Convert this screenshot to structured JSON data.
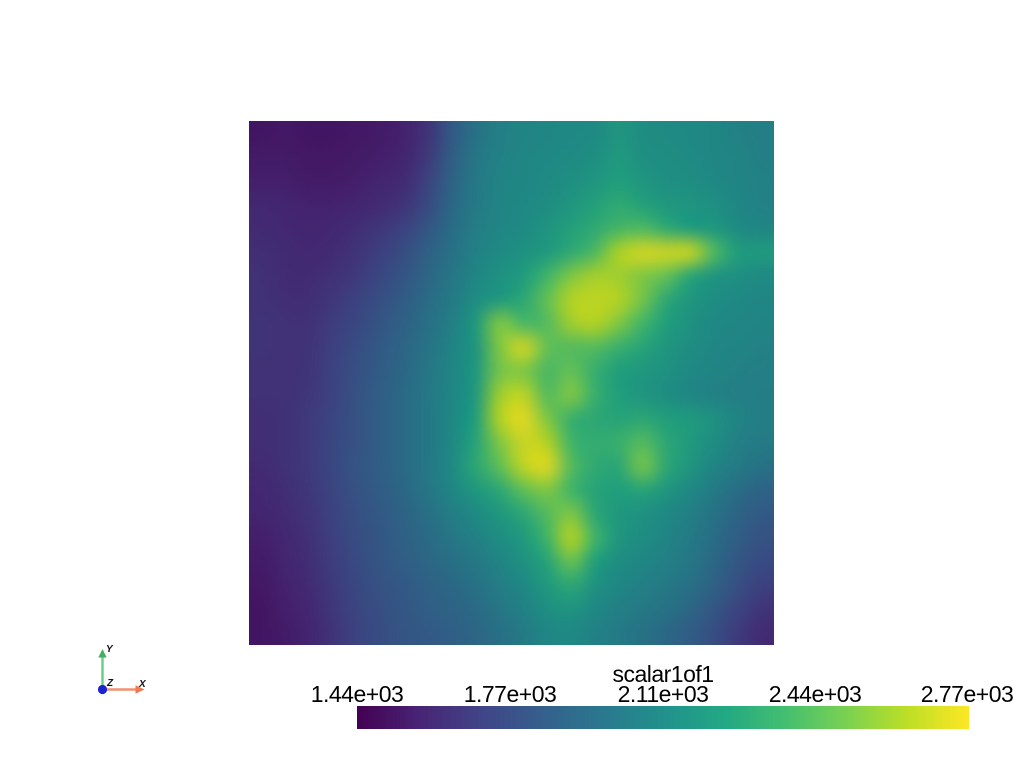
{
  "page": {
    "background": "#ffffff"
  },
  "chart_data": {
    "type": "heatmap",
    "title": "scalar1of1",
    "colormap": "viridis",
    "value_range": [
      1440,
      2770
    ],
    "colorbar": {
      "title": "scalar1of1",
      "ticks": [
        "1.44e+03",
        "1.77e+03",
        "2.11e+03",
        "2.44e+03",
        "2.77e+03"
      ],
      "orientation": "horizontal"
    },
    "grid_size": [
      22,
      22
    ],
    "values_normalized": [
      [
        0.06,
        0.07,
        0.06,
        0.06,
        0.07,
        0.08,
        0.1,
        0.16,
        0.3,
        0.4,
        0.46,
        0.48,
        0.49,
        0.5,
        0.51,
        0.56,
        0.52,
        0.51,
        0.5,
        0.49,
        0.47,
        0.46
      ],
      [
        0.08,
        0.08,
        0.07,
        0.07,
        0.08,
        0.09,
        0.11,
        0.18,
        0.32,
        0.42,
        0.47,
        0.49,
        0.5,
        0.51,
        0.53,
        0.58,
        0.53,
        0.52,
        0.51,
        0.49,
        0.48,
        0.46
      ],
      [
        0.09,
        0.09,
        0.08,
        0.08,
        0.09,
        0.11,
        0.13,
        0.21,
        0.34,
        0.43,
        0.48,
        0.49,
        0.51,
        0.53,
        0.56,
        0.6,
        0.56,
        0.53,
        0.52,
        0.5,
        0.48,
        0.47
      ],
      [
        0.12,
        0.11,
        0.1,
        0.1,
        0.11,
        0.13,
        0.16,
        0.24,
        0.36,
        0.44,
        0.48,
        0.5,
        0.52,
        0.56,
        0.61,
        0.65,
        0.61,
        0.57,
        0.55,
        0.53,
        0.49,
        0.47
      ],
      [
        0.13,
        0.12,
        0.11,
        0.12,
        0.14,
        0.17,
        0.21,
        0.29,
        0.38,
        0.45,
        0.49,
        0.51,
        0.55,
        0.61,
        0.65,
        0.71,
        0.73,
        0.65,
        0.59,
        0.57,
        0.51,
        0.49
      ],
      [
        0.14,
        0.13,
        0.12,
        0.13,
        0.16,
        0.2,
        0.25,
        0.33,
        0.4,
        0.47,
        0.51,
        0.54,
        0.58,
        0.65,
        0.73,
        0.89,
        0.95,
        0.94,
        0.93,
        0.73,
        0.59,
        0.58
      ],
      [
        0.15,
        0.13,
        0.13,
        0.15,
        0.18,
        0.23,
        0.28,
        0.35,
        0.42,
        0.49,
        0.54,
        0.59,
        0.7,
        0.82,
        0.88,
        0.87,
        0.82,
        0.77,
        0.63,
        0.55,
        0.53,
        0.51
      ],
      [
        0.15,
        0.14,
        0.14,
        0.17,
        0.21,
        0.26,
        0.31,
        0.38,
        0.44,
        0.52,
        0.58,
        0.64,
        0.77,
        0.9,
        0.92,
        0.9,
        0.8,
        0.64,
        0.56,
        0.52,
        0.5,
        0.49
      ],
      [
        0.16,
        0.15,
        0.15,
        0.19,
        0.23,
        0.28,
        0.33,
        0.39,
        0.46,
        0.58,
        0.82,
        0.72,
        0.74,
        0.87,
        0.9,
        0.82,
        0.7,
        0.6,
        0.54,
        0.5,
        0.49,
        0.48
      ],
      [
        0.16,
        0.15,
        0.16,
        0.2,
        0.25,
        0.3,
        0.35,
        0.41,
        0.48,
        0.56,
        0.82,
        0.95,
        0.77,
        0.74,
        0.74,
        0.68,
        0.62,
        0.56,
        0.52,
        0.49,
        0.48,
        0.47
      ],
      [
        0.15,
        0.15,
        0.16,
        0.21,
        0.26,
        0.31,
        0.36,
        0.42,
        0.49,
        0.57,
        0.8,
        0.82,
        0.72,
        0.77,
        0.67,
        0.6,
        0.57,
        0.54,
        0.5,
        0.48,
        0.47,
        0.46
      ],
      [
        0.15,
        0.15,
        0.17,
        0.21,
        0.27,
        0.32,
        0.37,
        0.43,
        0.49,
        0.58,
        0.87,
        0.92,
        0.74,
        0.82,
        0.68,
        0.6,
        0.56,
        0.52,
        0.49,
        0.47,
        0.46,
        0.45
      ],
      [
        0.14,
        0.15,
        0.18,
        0.22,
        0.27,
        0.32,
        0.37,
        0.43,
        0.5,
        0.6,
        0.9,
        0.98,
        0.82,
        0.68,
        0.64,
        0.62,
        0.64,
        0.6,
        0.58,
        0.54,
        0.48,
        0.45
      ],
      [
        0.14,
        0.15,
        0.18,
        0.23,
        0.27,
        0.32,
        0.37,
        0.43,
        0.5,
        0.62,
        0.82,
        0.94,
        0.9,
        0.7,
        0.66,
        0.68,
        0.74,
        0.64,
        0.58,
        0.52,
        0.46,
        0.44
      ],
      [
        0.13,
        0.15,
        0.18,
        0.23,
        0.28,
        0.32,
        0.37,
        0.43,
        0.51,
        0.64,
        0.76,
        0.92,
        0.97,
        0.74,
        0.65,
        0.64,
        0.8,
        0.64,
        0.56,
        0.48,
        0.44,
        0.4
      ],
      [
        0.12,
        0.14,
        0.17,
        0.22,
        0.27,
        0.31,
        0.36,
        0.42,
        0.49,
        0.57,
        0.64,
        0.76,
        0.82,
        0.7,
        0.62,
        0.6,
        0.62,
        0.56,
        0.5,
        0.44,
        0.38,
        0.34
      ],
      [
        0.11,
        0.13,
        0.16,
        0.21,
        0.26,
        0.3,
        0.34,
        0.39,
        0.45,
        0.51,
        0.57,
        0.64,
        0.74,
        0.82,
        0.64,
        0.57,
        0.54,
        0.5,
        0.46,
        0.4,
        0.34,
        0.3
      ],
      [
        0.09,
        0.12,
        0.15,
        0.2,
        0.25,
        0.29,
        0.33,
        0.37,
        0.42,
        0.47,
        0.52,
        0.58,
        0.7,
        0.9,
        0.7,
        0.56,
        0.52,
        0.48,
        0.44,
        0.38,
        0.32,
        0.27
      ],
      [
        0.08,
        0.11,
        0.14,
        0.19,
        0.24,
        0.28,
        0.32,
        0.35,
        0.39,
        0.43,
        0.48,
        0.54,
        0.62,
        0.78,
        0.6,
        0.52,
        0.49,
        0.46,
        0.42,
        0.36,
        0.29,
        0.24
      ],
      [
        0.07,
        0.1,
        0.13,
        0.18,
        0.23,
        0.27,
        0.3,
        0.33,
        0.36,
        0.4,
        0.45,
        0.5,
        0.58,
        0.64,
        0.54,
        0.49,
        0.46,
        0.43,
        0.39,
        0.33,
        0.26,
        0.2
      ],
      [
        0.06,
        0.09,
        0.12,
        0.17,
        0.22,
        0.26,
        0.29,
        0.32,
        0.34,
        0.37,
        0.42,
        0.47,
        0.53,
        0.55,
        0.5,
        0.46,
        0.43,
        0.4,
        0.35,
        0.29,
        0.22,
        0.16
      ],
      [
        0.06,
        0.08,
        0.11,
        0.16,
        0.21,
        0.25,
        0.28,
        0.3,
        0.32,
        0.35,
        0.39,
        0.44,
        0.49,
        0.5,
        0.47,
        0.44,
        0.4,
        0.36,
        0.31,
        0.25,
        0.18,
        0.13
      ]
    ],
    "colormap_stops": [
      "#440154",
      "#482475",
      "#414487",
      "#355f8d",
      "#2a788e",
      "#21918c",
      "#22a884",
      "#44bf70",
      "#7ad151",
      "#bddf26",
      "#fde725"
    ]
  },
  "orientation_axes": {
    "x_label": "X",
    "y_label": "Y",
    "z_label": "Z",
    "x_color": "#f09070",
    "x_head_color": "#ed7a50",
    "y_color": "#63cd87",
    "y_head_color": "#42ad63",
    "z_color": "#1c24cf",
    "label_color": "#111111"
  }
}
